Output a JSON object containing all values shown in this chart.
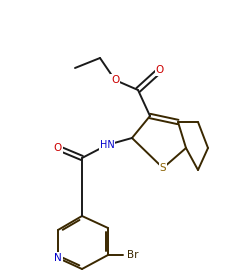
{
  "bg_color": "#ffffff",
  "line_color": "#1a1a1a",
  "bond_color": "#3a2800",
  "atom_colors": {
    "O": "#cc0000",
    "N": "#0000cc",
    "S": "#8a6000",
    "Br": "#3a2800",
    "C": "#1a1a1a"
  }
}
